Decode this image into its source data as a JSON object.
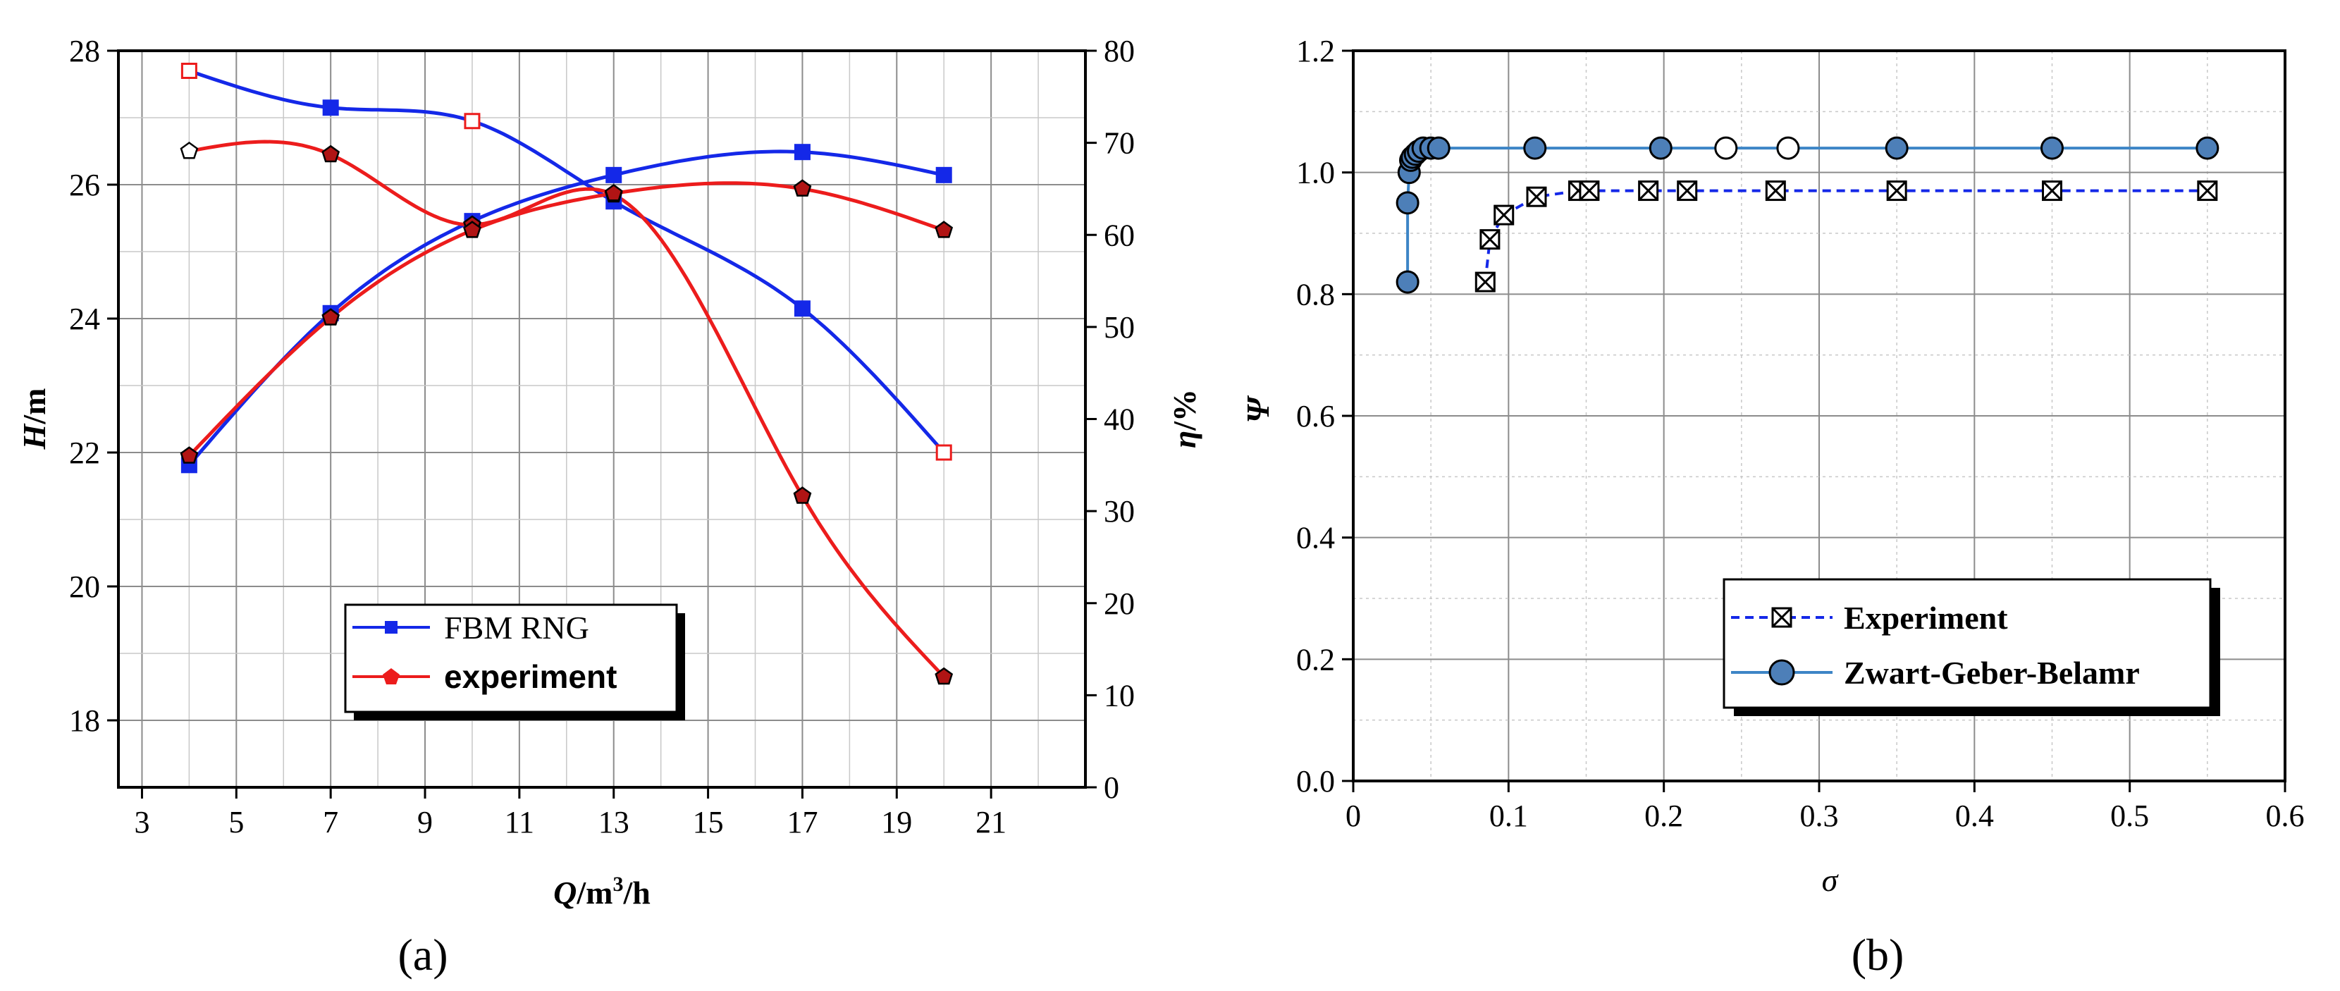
{
  "colors": {
    "blue": "#1428e8",
    "red": "#ec1c1c",
    "steel": "#3d85c6",
    "marker_fill_blue": "#4d7fb8",
    "dark_red": "#b01414",
    "grid": "#8c8c8c",
    "grid_minor": "#c8c8c8"
  },
  "chart_data": [
    {
      "panel_label": "(a)",
      "type": "line",
      "x_axis": {
        "label_var": "Q",
        "label_unit": "/m",
        "label_sup": "3",
        "label_tail": "/h",
        "ticks": [
          3,
          5,
          7,
          9,
          11,
          13,
          15,
          17,
          19,
          21
        ],
        "range": [
          2.5,
          23
        ]
      },
      "y_axis_left": {
        "label_var": "H",
        "label_unit": "/m",
        "ticks": [
          18,
          20,
          22,
          24,
          26,
          28
        ],
        "range": [
          17,
          28
        ]
      },
      "y_axis_right": {
        "label_var": "η",
        "label_unit": "/%",
        "ticks": [
          0,
          10,
          20,
          30,
          40,
          50,
          60,
          70,
          80
        ],
        "range": [
          0,
          80
        ]
      },
      "grid": true,
      "legend": {
        "position": "bottom-center",
        "entries": [
          "FBM RNG",
          "experiment"
        ]
      },
      "series": [
        {
          "name": "FBM RNG",
          "role": "head",
          "axis": "left",
          "color": "blue",
          "marker": "square",
          "x": [
            4,
            7,
            10,
            13,
            17,
            20
          ],
          "y": [
            27.7,
            27.15,
            26.95,
            25.75,
            24.15,
            22.0
          ]
        },
        {
          "name": "FBM RNG",
          "role": "efficiency",
          "axis": "right",
          "color": "blue",
          "marker": "square",
          "x": [
            4,
            7,
            10,
            13,
            17,
            20
          ],
          "y": [
            35.0,
            51.5,
            61.5,
            66.5,
            69.0,
            66.5
          ]
        },
        {
          "name": "experiment",
          "role": "head",
          "axis": "left",
          "color": "red",
          "marker": "pentagon",
          "x": [
            4,
            7,
            10,
            13,
            17,
            20
          ],
          "y": [
            26.5,
            26.45,
            25.4,
            25.85,
            21.35,
            18.65
          ]
        },
        {
          "name": "experiment",
          "role": "efficiency",
          "axis": "right",
          "color": "red",
          "marker": "pentagon",
          "x": [
            4,
            7,
            10,
            13,
            17,
            20
          ],
          "y": [
            36.0,
            51.0,
            60.5,
            64.5,
            65.0,
            60.5
          ]
        }
      ]
    },
    {
      "panel_label": "(b)",
      "type": "line",
      "x_axis": {
        "label": "σ",
        "ticks": [
          "0",
          "0.1",
          "0.2",
          "0.3",
          "0.4",
          "0.5",
          "0.6"
        ],
        "range": [
          0,
          0.6
        ]
      },
      "y_axis": {
        "label": "Ψ",
        "ticks": [
          "0.0",
          "0.2",
          "0.4",
          "0.6",
          "0.8",
          "1.0",
          "1.2"
        ],
        "range": [
          0,
          1.2
        ]
      },
      "grid": true,
      "legend": {
        "position": "bottom-right",
        "entries": [
          "Experiment",
          "Zwart-Geber-Belamr"
        ]
      },
      "series": [
        {
          "name": "Experiment",
          "color": "blue",
          "line": "dashed",
          "marker": "boxed-x",
          "x": [
            0.085,
            0.088,
            0.097,
            0.118,
            0.145,
            0.152,
            0.19,
            0.215,
            0.272,
            0.35,
            0.45,
            0.55
          ],
          "y": [
            0.82,
            0.89,
            0.93,
            0.96,
            0.97,
            0.97,
            0.97,
            0.97,
            0.97,
            0.97,
            0.97,
            0.97
          ]
        },
        {
          "name": "Zwart-Geber-Belamr",
          "color": "steel",
          "line": "solid",
          "marker": "circle",
          "x": [
            0.035,
            0.035,
            0.036,
            0.037,
            0.038,
            0.04,
            0.042,
            0.045,
            0.05,
            0.055,
            0.117,
            0.198,
            0.35,
            0.45,
            0.55
          ],
          "y": [
            0.82,
            0.95,
            1.0,
            1.02,
            1.025,
            1.03,
            1.035,
            1.04,
            1.04,
            1.04,
            1.04,
            1.04,
            1.04,
            1.04,
            1.04
          ]
        },
        {
          "name": "",
          "color": "black",
          "line": "none",
          "marker": "hollow-circle",
          "x": [
            0.24,
            0.28
          ],
          "y": [
            1.04,
            1.04
          ]
        }
      ]
    }
  ]
}
